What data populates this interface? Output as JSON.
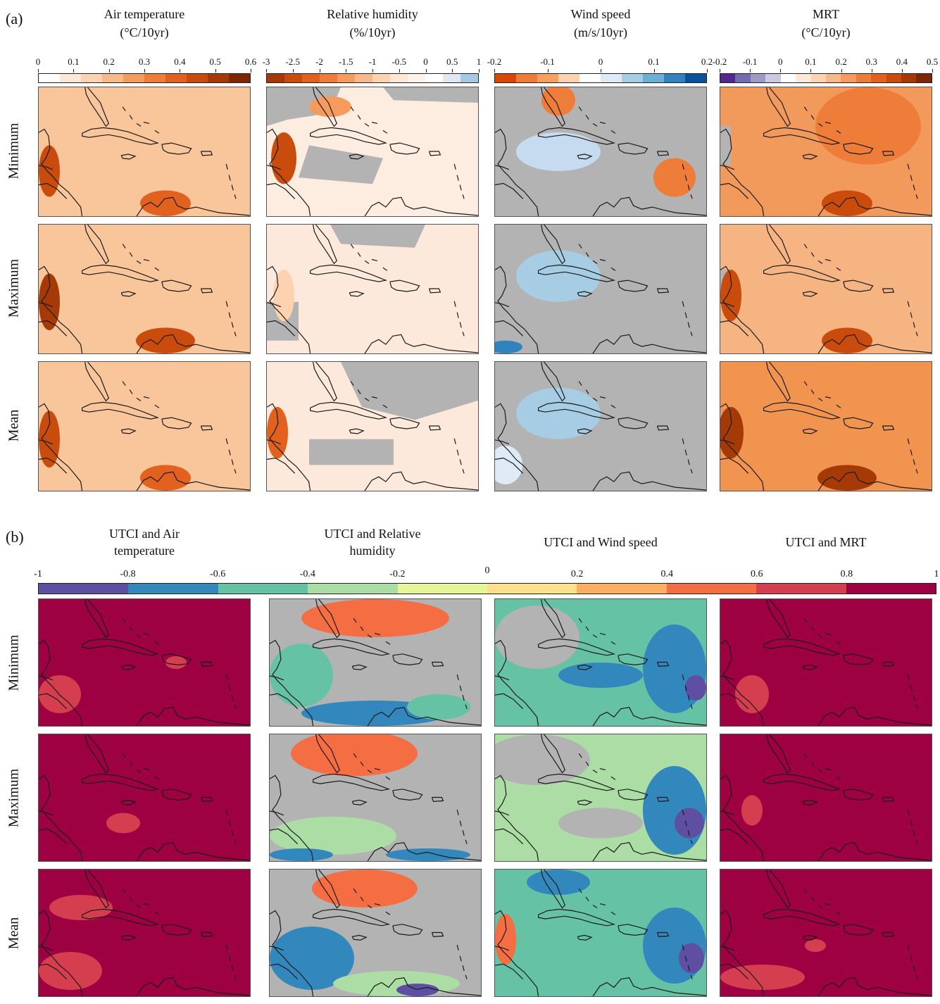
{
  "figure": {
    "panel_a": {
      "label": "(a)",
      "columns": [
        {
          "title_line1": "Air temperature",
          "title_line2": "(°C/10yr)",
          "ticks": [
            "0",
            "0.1",
            "0.2",
            "0.3",
            "0.4",
            "0.5",
            "0.6"
          ],
          "colors": [
            "#ffffff",
            "#fde8d8",
            "#fcd2b0",
            "#f8b888",
            "#f59b5e",
            "#ef7d3a",
            "#e2611e",
            "#c94c0c",
            "#a63a06",
            "#7f2704"
          ]
        },
        {
          "title_line1": "Relative humidity",
          "title_line2": "(%/10yr)",
          "ticks": [
            "-3",
            "-2.5",
            "-2",
            "-1.5",
            "-1",
            "-0.5",
            "0",
            "0.5",
            "1"
          ],
          "colors": [
            "#a63a06",
            "#c94c0c",
            "#e2611e",
            "#ef7d3a",
            "#f59b5e",
            "#f8b888",
            "#fcd2b0",
            "#fde8d8",
            "#fef3ea",
            "#ffffff",
            "#dde8f3",
            "#a6c8e3"
          ]
        },
        {
          "title_line1": "Wind speed",
          "title_line2": "(m/s/10yr)",
          "ticks": [
            "-0.2",
            "-0.1",
            "0",
            "0.1",
            "0.2"
          ],
          "colors": [
            "#d94801",
            "#ef7d3a",
            "#f5a05f",
            "#fcd2b0",
            "#ffffff",
            "#deebf7",
            "#a6cde3",
            "#6baed6",
            "#3182bd",
            "#08519c"
          ]
        },
        {
          "title_line1": "MRT",
          "title_line2": "(°C/10yr)",
          "ticks": [
            "-0.2",
            "-0.1",
            "0",
            "0.1",
            "0.2",
            "0.3",
            "0.4",
            "0.5"
          ],
          "colors": [
            "#54278f",
            "#756bb1",
            "#9e9ac8",
            "#cbc9e2",
            "#ffffff",
            "#fde8d8",
            "#fcd2b0",
            "#f8b888",
            "#f59b5e",
            "#ef7d3a",
            "#e2611e",
            "#c94c0c",
            "#a63a06",
            "#7f2704"
          ]
        }
      ],
      "rows": [
        "Minimum",
        "Maximum",
        "Mean"
      ]
    },
    "panel_b": {
      "label": "(b)",
      "columns": [
        {
          "title_line1": "UTCI and Air",
          "title_line2": "temperature"
        },
        {
          "title_line1": "UTCI and Relative",
          "title_line2": "humidity"
        },
        {
          "title_line1": "UTCI and Wind speed",
          "title_line2": ""
        },
        {
          "title_line1": "UTCI and MRT",
          "title_line2": ""
        }
      ],
      "rows": [
        "Minimum",
        "Maximum",
        "Mean"
      ],
      "colorbar_ticks": [
        "-1",
        "-0.8",
        "-0.6",
        "-0.4",
        "-0.2",
        "0",
        "0.2",
        "0.4",
        "0.6",
        "0.8",
        "1"
      ],
      "colorbar_colors": [
        "#5e4fa2",
        "#3288bd",
        "#66c2a5",
        "#abdda4",
        "#e6f598",
        "#fee08b",
        "#fdae61",
        "#f46d43",
        "#d53e4f",
        "#9e0142"
      ]
    },
    "colors": {
      "no_data_gray": "#b3b3b3",
      "coastline": "#1a1a1a"
    }
  }
}
